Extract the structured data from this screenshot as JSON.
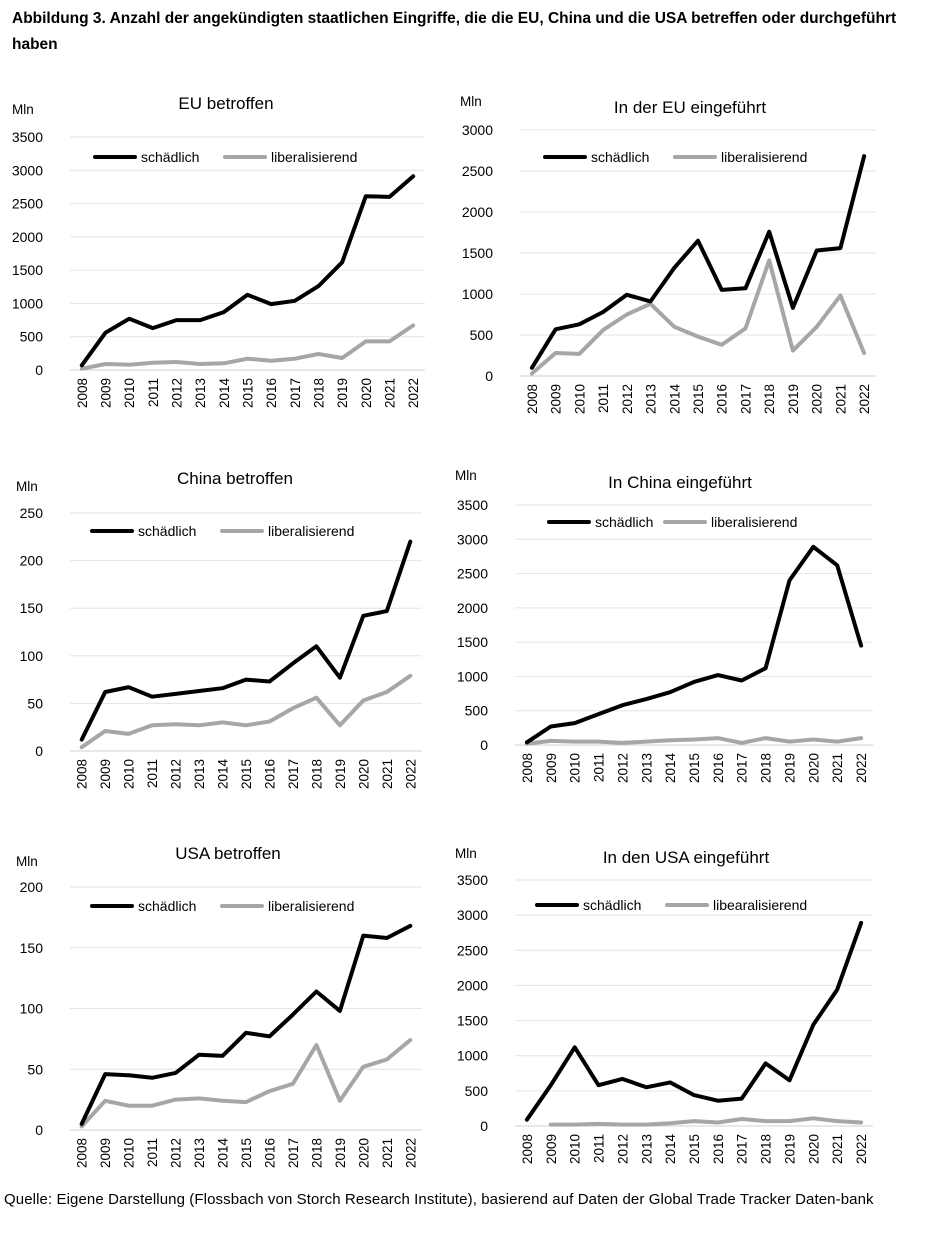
{
  "figure": {
    "title": "Abbildung 3. Anzahl der angekündigten staatlichen Eingriffe, die die EU, China und die USA betreffen oder durchgeführt haben",
    "source": "Quelle: Eigene Darstellung (Flossbach von Storch Research Institute), basierend auf Daten der Global Trade Tracker Daten-bank"
  },
  "colors": {
    "harmful": "#000000",
    "liberalizing": "#a6a6a6",
    "grid": "#e4e4e4",
    "text": "#000000"
  },
  "chart_data": [
    {
      "type": "line",
      "title": "EU betroffen",
      "ylabel": "Mln",
      "ylim": [
        0,
        3500
      ],
      "yticks": [
        0,
        500,
        1000,
        1500,
        2000,
        2500,
        3000,
        3500
      ],
      "x": [
        "2008",
        "2009",
        "2010",
        "2011",
        "2012",
        "2013",
        "2014",
        "2015",
        "2016",
        "2017",
        "2018",
        "2019",
        "2020",
        "2021",
        "2022"
      ],
      "series": [
        {
          "name": "schädlich",
          "values": [
            70,
            560,
            770,
            630,
            750,
            750,
            870,
            1130,
            990,
            1040,
            1260,
            1620,
            2610,
            2600,
            2910
          ]
        },
        {
          "name": "liberalisierend",
          "values": [
            20,
            90,
            80,
            110,
            120,
            90,
            100,
            170,
            140,
            170,
            240,
            180,
            430,
            430,
            670
          ]
        }
      ]
    },
    {
      "type": "line",
      "title": "In der EU eingeführt",
      "ylabel": "Mln",
      "ylim": [
        0,
        3000
      ],
      "yticks": [
        0,
        500,
        1000,
        1500,
        2000,
        2500,
        3000
      ],
      "x": [
        "2008",
        "2009",
        "2010",
        "2011",
        "2012",
        "2013",
        "2014",
        "2015",
        "2016",
        "2017",
        "2018",
        "2019",
        "2020",
        "2021",
        "2022"
      ],
      "series": [
        {
          "name": "schädlich",
          "values": [
            100,
            570,
            630,
            780,
            990,
            910,
            1320,
            1650,
            1050,
            1070,
            1760,
            830,
            1530,
            1560,
            2680
          ]
        },
        {
          "name": "liberalisierend",
          "values": [
            30,
            280,
            270,
            560,
            750,
            880,
            600,
            480,
            380,
            580,
            1410,
            310,
            600,
            980,
            280
          ]
        }
      ]
    },
    {
      "type": "line",
      "title": "China betroffen",
      "ylabel": "Mln",
      "ylim": [
        0,
        250
      ],
      "yticks": [
        0,
        50,
        100,
        150,
        200,
        250
      ],
      "x": [
        "2008",
        "2009",
        "2010",
        "2011",
        "2012",
        "2013",
        "2014",
        "2015",
        "2016",
        "2017",
        "2018",
        "2019",
        "2020",
        "2021",
        "2022"
      ],
      "series": [
        {
          "name": "schädlich",
          "values": [
            12,
            62,
            67,
            57,
            60,
            63,
            66,
            75,
            73,
            92,
            110,
            77,
            142,
            147,
            220
          ]
        },
        {
          "name": "liberalisierend",
          "values": [
            4,
            21,
            18,
            27,
            28,
            27,
            30,
            27,
            31,
            45,
            56,
            27,
            53,
            62,
            79
          ]
        }
      ]
    },
    {
      "type": "line",
      "title": "In China eingeführt",
      "ylabel": "Mln",
      "ylim": [
        0,
        3500
      ],
      "yticks": [
        0,
        500,
        1000,
        1500,
        2000,
        2500,
        3000,
        3500
      ],
      "x": [
        "2008",
        "2009",
        "2010",
        "2011",
        "2012",
        "2013",
        "2014",
        "2015",
        "2016",
        "2017",
        "2018",
        "2019",
        "2020",
        "2021",
        "2022"
      ],
      "series": [
        {
          "name": "schädlich",
          "values": [
            40,
            270,
            320,
            450,
            580,
            670,
            770,
            920,
            1020,
            940,
            1120,
            2400,
            2890,
            2620,
            1450
          ]
        },
        {
          "name": "liberalisierend",
          "values": [
            20,
            60,
            50,
            50,
            30,
            50,
            70,
            80,
            100,
            30,
            100,
            50,
            80,
            50,
            100
          ]
        }
      ]
    },
    {
      "type": "line",
      "title": "USA betroffen",
      "ylabel": "Mln",
      "ylim": [
        0,
        200
      ],
      "yticks": [
        0,
        50,
        100,
        150,
        200
      ],
      "x": [
        "2008",
        "2009",
        "2010",
        "2011",
        "2012",
        "2013",
        "2014",
        "2015",
        "2016",
        "2017",
        "2018",
        "2019",
        "2020",
        "2021",
        "2022"
      ],
      "series": [
        {
          "name": "schädlich",
          "values": [
            5,
            46,
            45,
            43,
            47,
            62,
            61,
            80,
            77,
            95,
            114,
            98,
            160,
            158,
            168
          ]
        },
        {
          "name": "liberalisierend",
          "values": [
            3,
            24,
            20,
            20,
            25,
            26,
            24,
            23,
            32,
            38,
            70,
            24,
            52,
            58,
            74
          ]
        }
      ]
    },
    {
      "type": "line",
      "title": "In den USA eingeführt",
      "ylabel": "Mln",
      "ylim": [
        0,
        3500
      ],
      "yticks": [
        0,
        500,
        1000,
        1500,
        2000,
        2500,
        3000,
        3500
      ],
      "x": [
        "2008",
        "2009",
        "2010",
        "2011",
        "2012",
        "2013",
        "2014",
        "2015",
        "2016",
        "2017",
        "2018",
        "2019",
        "2020",
        "2021",
        "2022"
      ],
      "series": [
        {
          "name": "schädlich",
          "values": [
            90,
            580,
            1120,
            580,
            670,
            550,
            620,
            440,
            360,
            390,
            890,
            650,
            1440,
            1940,
            2890
          ]
        },
        {
          "name": "libearalisierend",
          "values": [
            null,
            20,
            20,
            30,
            20,
            20,
            40,
            70,
            50,
            100,
            70,
            70,
            110,
            70,
            50
          ]
        }
      ]
    }
  ]
}
